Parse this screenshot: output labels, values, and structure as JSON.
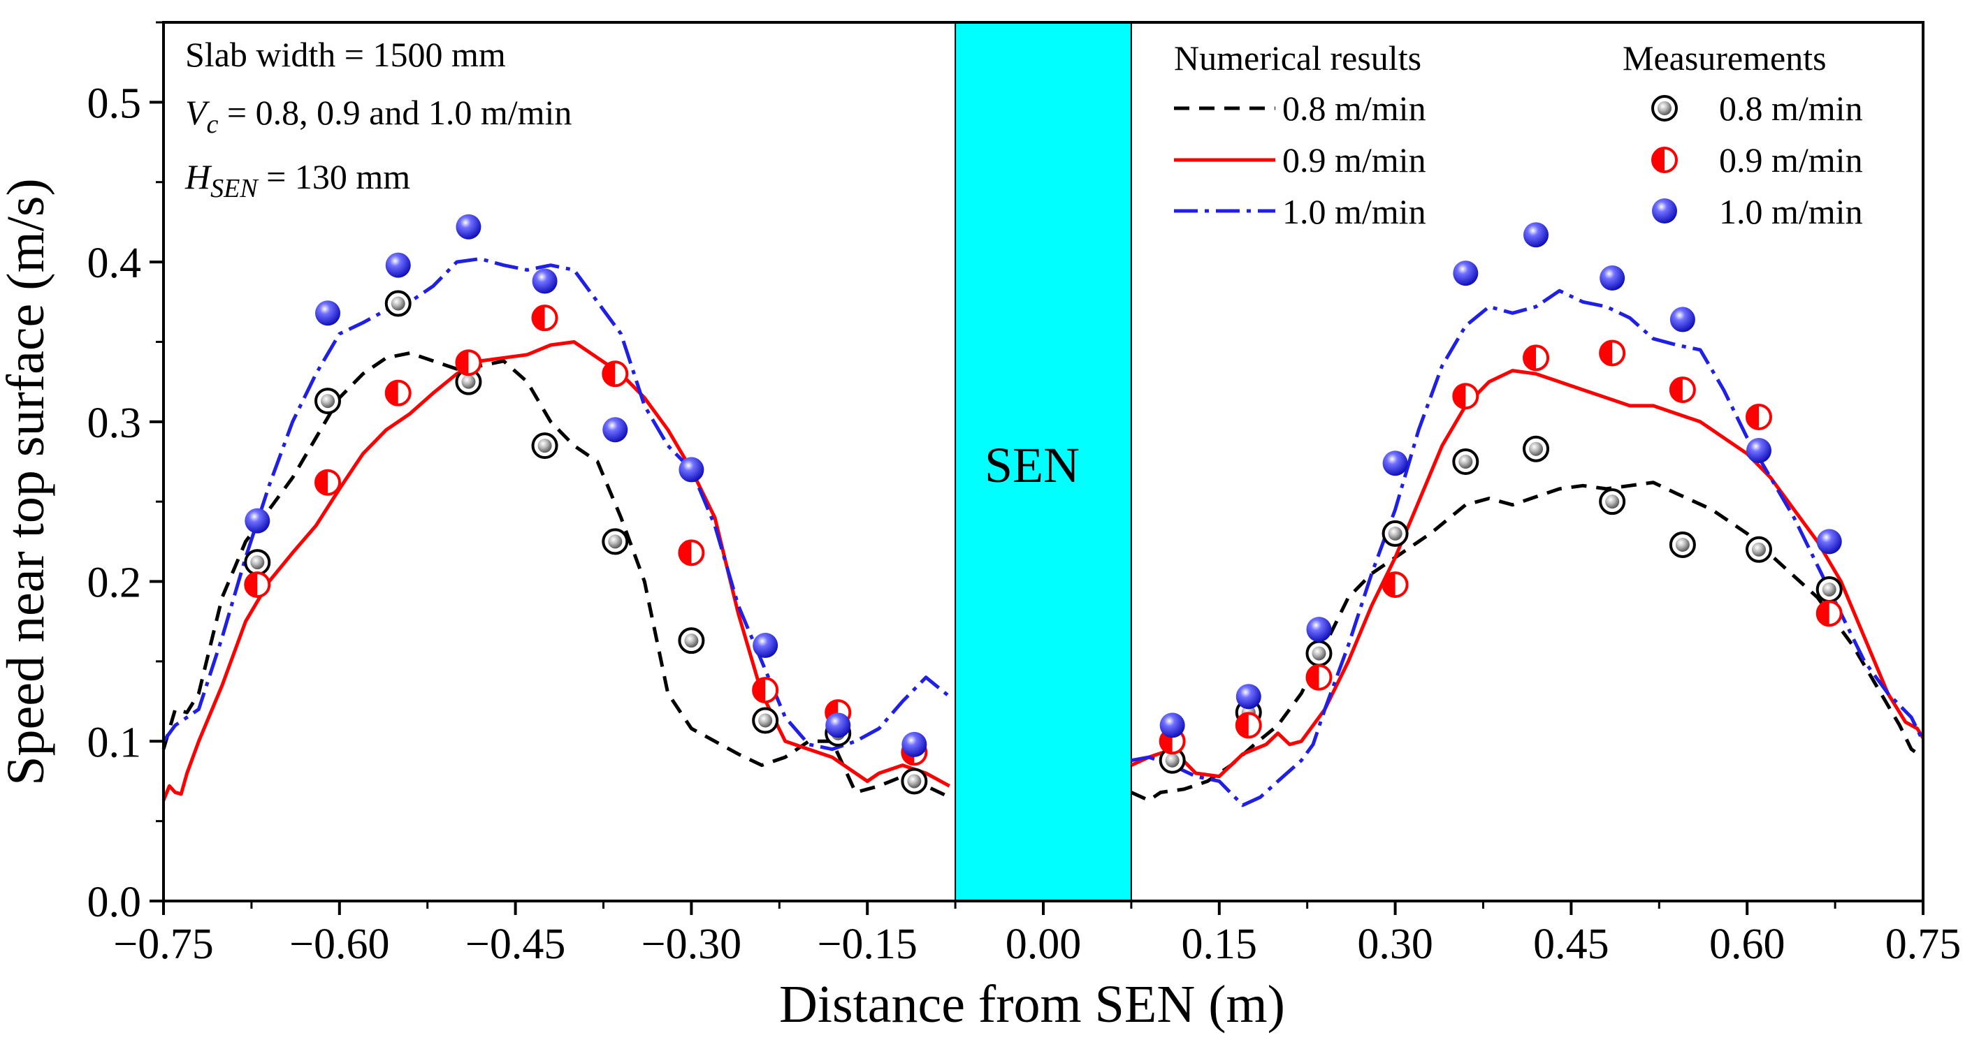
{
  "chart_data": {
    "type": "line",
    "xlabel": "Distance from SEN (m)",
    "ylabel": "Speed near top surface (m/s)",
    "xlim": [
      -0.75,
      0.75
    ],
    "ylim": [
      0.0,
      0.55
    ],
    "x_ticks": [
      -0.75,
      -0.6,
      -0.45,
      -0.3,
      -0.15,
      0.0,
      0.15,
      0.3,
      0.45,
      0.6,
      0.75
    ],
    "x_tick_labels": [
      "−0.75",
      "−0.60",
      "−0.45",
      "−0.30",
      "−0.15",
      "0.00",
      "0.15",
      "0.30",
      "0.45",
      "0.60",
      "0.75"
    ],
    "y_ticks": [
      0.0,
      0.1,
      0.2,
      0.3,
      0.4,
      0.5
    ],
    "y_tick_labels": [
      "0.0",
      "0.1",
      "0.2",
      "0.3",
      "0.4",
      "0.5"
    ],
    "sen_region": {
      "x_range": [
        -0.075,
        0.075
      ],
      "label": "SEN",
      "color": "#00ffff"
    },
    "annotations": {
      "line1": "Slab width = 1500 mm",
      "line2_var": "V",
      "line2_sub": "c",
      "line2_rest": " = 0.8, 0.9 and 1.0 m/min",
      "line3_var": "H",
      "line3_sub": "SEN",
      "line3_rest": " = 130 mm"
    },
    "legend": {
      "numerical_title": "Numerical results",
      "measurement_title": "Measurements",
      "entries": [
        "0.8 m/min",
        "0.9 m/min",
        "1.0 m/min"
      ]
    },
    "series": [
      {
        "name": "0.8 m/min",
        "kind": "numerical",
        "color": "#000000",
        "dash": "22,14",
        "left": [
          [
            -0.75,
            0.095
          ],
          [
            -0.74,
            0.12
          ],
          [
            -0.73,
            0.118
          ],
          [
            -0.72,
            0.13
          ],
          [
            -0.71,
            0.16
          ],
          [
            -0.7,
            0.19
          ],
          [
            -0.68,
            0.225
          ],
          [
            -0.66,
            0.245
          ],
          [
            -0.64,
            0.265
          ],
          [
            -0.62,
            0.29
          ],
          [
            -0.6,
            0.315
          ],
          [
            -0.58,
            0.33
          ],
          [
            -0.56,
            0.34
          ],
          [
            -0.54,
            0.343
          ],
          [
            -0.52,
            0.338
          ],
          [
            -0.5,
            0.333
          ],
          [
            -0.48,
            0.335
          ],
          [
            -0.46,
            0.338
          ],
          [
            -0.44,
            0.325
          ],
          [
            -0.42,
            0.3
          ],
          [
            -0.4,
            0.285
          ],
          [
            -0.38,
            0.275
          ],
          [
            -0.36,
            0.24
          ],
          [
            -0.34,
            0.2
          ],
          [
            -0.32,
            0.13
          ],
          [
            -0.3,
            0.108
          ],
          [
            -0.28,
            0.1
          ],
          [
            -0.26,
            0.092
          ],
          [
            -0.24,
            0.085
          ],
          [
            -0.22,
            0.09
          ],
          [
            -0.2,
            0.1
          ],
          [
            -0.18,
            0.1
          ],
          [
            -0.16,
            0.068
          ],
          [
            -0.14,
            0.072
          ],
          [
            -0.12,
            0.078
          ],
          [
            -0.1,
            0.072
          ],
          [
            -0.08,
            0.065
          ]
        ],
        "right": [
          [
            0.075,
            0.068
          ],
          [
            0.09,
            0.063
          ],
          [
            0.1,
            0.068
          ],
          [
            0.12,
            0.07
          ],
          [
            0.14,
            0.075
          ],
          [
            0.16,
            0.085
          ],
          [
            0.18,
            0.098
          ],
          [
            0.2,
            0.11
          ],
          [
            0.22,
            0.13
          ],
          [
            0.24,
            0.16
          ],
          [
            0.26,
            0.19
          ],
          [
            0.28,
            0.205
          ],
          [
            0.3,
            0.215
          ],
          [
            0.33,
            0.23
          ],
          [
            0.36,
            0.248
          ],
          [
            0.38,
            0.252
          ],
          [
            0.4,
            0.248
          ],
          [
            0.42,
            0.253
          ],
          [
            0.44,
            0.258
          ],
          [
            0.46,
            0.26
          ],
          [
            0.48,
            0.258
          ],
          [
            0.5,
            0.26
          ],
          [
            0.52,
            0.262
          ],
          [
            0.54,
            0.255
          ],
          [
            0.57,
            0.245
          ],
          [
            0.6,
            0.23
          ],
          [
            0.63,
            0.21
          ],
          [
            0.66,
            0.19
          ],
          [
            0.69,
            0.16
          ],
          [
            0.71,
            0.135
          ],
          [
            0.73,
            0.11
          ],
          [
            0.74,
            0.095
          ],
          [
            0.75,
            0.09
          ]
        ]
      },
      {
        "name": "0.9 m/min",
        "kind": "numerical",
        "color": "#ff0000",
        "dash": "",
        "left": [
          [
            -0.75,
            0.063
          ],
          [
            -0.745,
            0.072
          ],
          [
            -0.74,
            0.068
          ],
          [
            -0.735,
            0.067
          ],
          [
            -0.73,
            0.08
          ],
          [
            -0.72,
            0.1
          ],
          [
            -0.7,
            0.135
          ],
          [
            -0.68,
            0.175
          ],
          [
            -0.66,
            0.2
          ],
          [
            -0.64,
            0.218
          ],
          [
            -0.62,
            0.235
          ],
          [
            -0.6,
            0.258
          ],
          [
            -0.58,
            0.28
          ],
          [
            -0.56,
            0.295
          ],
          [
            -0.54,
            0.305
          ],
          [
            -0.52,
            0.318
          ],
          [
            -0.5,
            0.33
          ],
          [
            -0.48,
            0.338
          ],
          [
            -0.46,
            0.34
          ],
          [
            -0.44,
            0.342
          ],
          [
            -0.42,
            0.348
          ],
          [
            -0.4,
            0.35
          ],
          [
            -0.38,
            0.34
          ],
          [
            -0.36,
            0.33
          ],
          [
            -0.34,
            0.315
          ],
          [
            -0.32,
            0.295
          ],
          [
            -0.3,
            0.27
          ],
          [
            -0.28,
            0.24
          ],
          [
            -0.26,
            0.18
          ],
          [
            -0.24,
            0.13
          ],
          [
            -0.22,
            0.1
          ],
          [
            -0.2,
            0.095
          ],
          [
            -0.18,
            0.09
          ],
          [
            -0.16,
            0.08
          ],
          [
            -0.15,
            0.075
          ],
          [
            -0.14,
            0.08
          ],
          [
            -0.12,
            0.085
          ],
          [
            -0.1,
            0.08
          ],
          [
            -0.08,
            0.072
          ]
        ],
        "right": [
          [
            0.075,
            0.085
          ],
          [
            0.09,
            0.09
          ],
          [
            0.11,
            0.095
          ],
          [
            0.13,
            0.08
          ],
          [
            0.15,
            0.078
          ],
          [
            0.17,
            0.092
          ],
          [
            0.19,
            0.098
          ],
          [
            0.2,
            0.105
          ],
          [
            0.21,
            0.098
          ],
          [
            0.22,
            0.1
          ],
          [
            0.24,
            0.12
          ],
          [
            0.26,
            0.15
          ],
          [
            0.28,
            0.185
          ],
          [
            0.3,
            0.215
          ],
          [
            0.32,
            0.25
          ],
          [
            0.34,
            0.285
          ],
          [
            0.36,
            0.31
          ],
          [
            0.38,
            0.325
          ],
          [
            0.4,
            0.332
          ],
          [
            0.42,
            0.33
          ],
          [
            0.44,
            0.325
          ],
          [
            0.46,
            0.32
          ],
          [
            0.48,
            0.315
          ],
          [
            0.5,
            0.31
          ],
          [
            0.52,
            0.31
          ],
          [
            0.54,
            0.305
          ],
          [
            0.56,
            0.3
          ],
          [
            0.58,
            0.29
          ],
          [
            0.6,
            0.28
          ],
          [
            0.62,
            0.265
          ],
          [
            0.64,
            0.245
          ],
          [
            0.66,
            0.225
          ],
          [
            0.68,
            0.2
          ],
          [
            0.7,
            0.165
          ],
          [
            0.72,
            0.13
          ],
          [
            0.735,
            0.112
          ],
          [
            0.745,
            0.108
          ],
          [
            0.75,
            0.102
          ]
        ]
      },
      {
        "name": "1.0 m/min",
        "kind": "numerical",
        "color": "#1f1fe6",
        "dash": "34,10,6,10",
        "left": [
          [
            -0.75,
            0.1
          ],
          [
            -0.74,
            0.11
          ],
          [
            -0.73,
            0.115
          ],
          [
            -0.72,
            0.12
          ],
          [
            -0.7,
            0.165
          ],
          [
            -0.68,
            0.215
          ],
          [
            -0.66,
            0.26
          ],
          [
            -0.64,
            0.3
          ],
          [
            -0.62,
            0.33
          ],
          [
            -0.6,
            0.355
          ],
          [
            -0.58,
            0.362
          ],
          [
            -0.56,
            0.37
          ],
          [
            -0.54,
            0.375
          ],
          [
            -0.52,
            0.385
          ],
          [
            -0.5,
            0.4
          ],
          [
            -0.48,
            0.402
          ],
          [
            -0.46,
            0.398
          ],
          [
            -0.44,
            0.395
          ],
          [
            -0.42,
            0.398
          ],
          [
            -0.4,
            0.395
          ],
          [
            -0.38,
            0.375
          ],
          [
            -0.36,
            0.355
          ],
          [
            -0.34,
            0.31
          ],
          [
            -0.32,
            0.285
          ],
          [
            -0.3,
            0.27
          ],
          [
            -0.28,
            0.235
          ],
          [
            -0.26,
            0.185
          ],
          [
            -0.24,
            0.15
          ],
          [
            -0.22,
            0.115
          ],
          [
            -0.2,
            0.098
          ],
          [
            -0.18,
            0.095
          ],
          [
            -0.16,
            0.1
          ],
          [
            -0.14,
            0.108
          ],
          [
            -0.12,
            0.125
          ],
          [
            -0.1,
            0.14
          ],
          [
            -0.08,
            0.128
          ]
        ],
        "right": [
          [
            0.075,
            0.088
          ],
          [
            0.09,
            0.09
          ],
          [
            0.11,
            0.085
          ],
          [
            0.13,
            0.078
          ],
          [
            0.15,
            0.075
          ],
          [
            0.17,
            0.06
          ],
          [
            0.185,
            0.065
          ],
          [
            0.2,
            0.075
          ],
          [
            0.22,
            0.088
          ],
          [
            0.23,
            0.098
          ],
          [
            0.24,
            0.12
          ],
          [
            0.26,
            0.16
          ],
          [
            0.28,
            0.205
          ],
          [
            0.3,
            0.245
          ],
          [
            0.32,
            0.295
          ],
          [
            0.34,
            0.335
          ],
          [
            0.36,
            0.36
          ],
          [
            0.38,
            0.372
          ],
          [
            0.4,
            0.368
          ],
          [
            0.42,
            0.372
          ],
          [
            0.44,
            0.382
          ],
          [
            0.46,
            0.375
          ],
          [
            0.48,
            0.372
          ],
          [
            0.5,
            0.365
          ],
          [
            0.52,
            0.352
          ],
          [
            0.54,
            0.348
          ],
          [
            0.56,
            0.345
          ],
          [
            0.58,
            0.32
          ],
          [
            0.6,
            0.29
          ],
          [
            0.62,
            0.265
          ],
          [
            0.64,
            0.24
          ],
          [
            0.66,
            0.21
          ],
          [
            0.68,
            0.18
          ],
          [
            0.7,
            0.15
          ],
          [
            0.72,
            0.13
          ],
          [
            0.74,
            0.115
          ],
          [
            0.75,
            0.1
          ]
        ]
      },
      {
        "name": "0.8 m/min",
        "kind": "measurement",
        "style": "grey",
        "color": "#000000",
        "points": [
          [
            -0.67,
            0.212
          ],
          [
            -0.61,
            0.313
          ],
          [
            -0.55,
            0.374
          ],
          [
            -0.49,
            0.325
          ],
          [
            -0.425,
            0.285
          ],
          [
            -0.365,
            0.225
          ],
          [
            -0.3,
            0.163
          ],
          [
            -0.237,
            0.113
          ],
          [
            -0.175,
            0.105
          ],
          [
            -0.11,
            0.075
          ],
          [
            0.11,
            0.088
          ],
          [
            0.175,
            0.118
          ],
          [
            0.235,
            0.155
          ],
          [
            0.3,
            0.23
          ],
          [
            0.36,
            0.275
          ],
          [
            0.42,
            0.283
          ],
          [
            0.485,
            0.25
          ],
          [
            0.545,
            0.223
          ],
          [
            0.61,
            0.22
          ],
          [
            0.67,
            0.195
          ]
        ]
      },
      {
        "name": "0.9 m/min",
        "kind": "measurement",
        "style": "half",
        "color": "#ff0000",
        "points": [
          [
            -0.67,
            0.198
          ],
          [
            -0.61,
            0.262
          ],
          [
            -0.55,
            0.318
          ],
          [
            -0.49,
            0.337
          ],
          [
            -0.425,
            0.365
          ],
          [
            -0.365,
            0.33
          ],
          [
            -0.3,
            0.218
          ],
          [
            -0.237,
            0.132
          ],
          [
            -0.175,
            0.118
          ],
          [
            -0.11,
            0.093
          ],
          [
            0.11,
            0.1
          ],
          [
            0.175,
            0.11
          ],
          [
            0.235,
            0.14
          ],
          [
            0.3,
            0.198
          ],
          [
            0.36,
            0.316
          ],
          [
            0.42,
            0.34
          ],
          [
            0.485,
            0.343
          ],
          [
            0.545,
            0.32
          ],
          [
            0.61,
            0.303
          ],
          [
            0.67,
            0.18
          ]
        ]
      },
      {
        "name": "1.0 m/min",
        "kind": "measurement",
        "style": "blue",
        "color": "#1f1fe6",
        "points": [
          [
            -0.67,
            0.238
          ],
          [
            -0.61,
            0.368
          ],
          [
            -0.55,
            0.398
          ],
          [
            -0.49,
            0.422
          ],
          [
            -0.425,
            0.388
          ],
          [
            -0.365,
            0.295
          ],
          [
            -0.3,
            0.27
          ],
          [
            -0.237,
            0.16
          ],
          [
            -0.175,
            0.11
          ],
          [
            -0.11,
            0.098
          ],
          [
            0.11,
            0.11
          ],
          [
            0.175,
            0.128
          ],
          [
            0.235,
            0.17
          ],
          [
            0.3,
            0.274
          ],
          [
            0.36,
            0.393
          ],
          [
            0.42,
            0.417
          ],
          [
            0.485,
            0.39
          ],
          [
            0.545,
            0.364
          ],
          [
            0.61,
            0.282
          ],
          [
            0.67,
            0.225
          ]
        ]
      }
    ]
  }
}
